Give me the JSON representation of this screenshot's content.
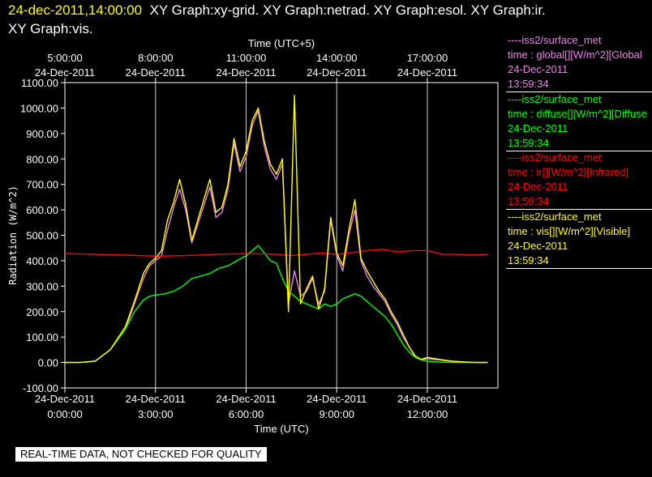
{
  "header": {
    "timestamp": "24-dec-2011,14:00:00",
    "graphs_line1": "XY Graph:xy-grid.  XY Graph:netrad.  XY Graph:esol.  XY Graph:ir.",
    "graphs_line2": "XY Graph:vis."
  },
  "legend": [
    {
      "source": "----iss2/surface_met",
      "var": "time : global[][W/m^2][Global",
      "date": "24-Dec-2011",
      "time": "13:59:34",
      "color": "#ee82ee"
    },
    {
      "source": "----iss2/surface_met",
      "var": "time : diffuse[][W/m^2][Diffuse",
      "date": "24-Dec-2011",
      "time": "13:59:34",
      "color": "#00ff00"
    },
    {
      "source": "----iss2/surface_met",
      "var": "time : ir[][W/m^2][Infrared]",
      "date": "24-Dec-2011",
      "time": "13:59:34",
      "color": "#ff0000"
    },
    {
      "source": "----iss2/surface_met",
      "var": "time : vis[][W/m^2][Visible]",
      "date": "24-Dec-2011",
      "time": "13:59:34",
      "color": "#ffff00"
    }
  ],
  "disclaimer": "REAL-TIME DATA, NOT CHECKED FOR QUALITY",
  "chart_data": {
    "type": "line",
    "xlabel": "Time (UTC)",
    "x2label": "Time (UTC+5)",
    "ylabel": "Radiation (W/m^2)",
    "xlim": [
      0,
      14.1
    ],
    "ylim": [
      -100,
      1100
    ],
    "yticks": [
      "-100.00",
      "0.00",
      "100.00",
      "200.00",
      "300.00",
      "400.00",
      "500.00",
      "600.00",
      "700.00",
      "800.00",
      "900.00",
      "1000.00",
      "1100.00"
    ],
    "xticks_bottom": [
      {
        "x": 0,
        "date": "24-Dec-2011",
        "time": "0:00:00"
      },
      {
        "x": 3,
        "date": "24-Dec-2011",
        "time": "3:00:00"
      },
      {
        "x": 6,
        "date": "24-Dec-2011",
        "time": "6:00:00"
      },
      {
        "x": 9,
        "date": "24-Dec-2011",
        "time": "9:00:00"
      },
      {
        "x": 12,
        "date": "24-Dec-2011",
        "time": "12:00:00"
      }
    ],
    "xticks_top": [
      {
        "x": 0,
        "time": "5:00:00",
        "date": "24-Dec-2011"
      },
      {
        "x": 3,
        "time": "8:00:00",
        "date": "24-Dec-2011"
      },
      {
        "x": 6,
        "time": "11:00:00",
        "date": "24-Dec-2011"
      },
      {
        "x": 9,
        "time": "14:00:00",
        "date": "24-Dec-2011"
      },
      {
        "x": 12,
        "time": "17:00:00",
        "date": "24-Dec-2011"
      }
    ],
    "grid": "vertical",
    "legend_position": "right",
    "series": [
      {
        "key": "global",
        "color": "#ee82ee",
        "x": [
          0,
          0.5,
          1,
          1.5,
          2,
          2.3,
          2.6,
          2.8,
          3,
          3.2,
          3.4,
          3.6,
          3.8,
          4,
          4.2,
          4.5,
          4.8,
          5,
          5.2,
          5.4,
          5.6,
          5.8,
          6,
          6.2,
          6.4,
          6.6,
          6.8,
          7,
          7.2,
          7.4,
          7.6,
          7.8,
          8,
          8.2,
          8.4,
          8.6,
          8.8,
          9,
          9.2,
          9.4,
          9.6,
          9.8,
          10,
          10.2,
          10.4,
          10.6,
          10.8,
          11,
          11.2,
          11.4,
          11.6,
          11.8,
          12,
          12.4,
          12.8,
          13.2,
          13.6,
          14
        ],
        "y": [
          0,
          0,
          5,
          50,
          130,
          230,
          330,
          380,
          400,
          420,
          520,
          610,
          680,
          600,
          470,
          580,
          690,
          570,
          590,
          680,
          860,
          750,
          810,
          930,
          990,
          850,
          760,
          720,
          780,
          230,
          360,
          260,
          280,
          330,
          230,
          280,
          560,
          420,
          360,
          500,
          600,
          400,
          340,
          300,
          270,
          240,
          190,
          150,
          100,
          60,
          20,
          10,
          15,
          10,
          5,
          2,
          0,
          0
        ]
      },
      {
        "key": "diffuse",
        "color": "#00ff00",
        "x": [
          0,
          0.5,
          1,
          1.5,
          2,
          2.3,
          2.6,
          2.8,
          3,
          3.3,
          3.6,
          3.9,
          4.2,
          4.5,
          4.8,
          5.1,
          5.4,
          5.7,
          6,
          6.2,
          6.4,
          6.6,
          6.8,
          7,
          7.2,
          7.4,
          7.6,
          7.8,
          8,
          8.2,
          8.4,
          8.6,
          8.8,
          9,
          9.2,
          9.4,
          9.6,
          9.8,
          10,
          10.2,
          10.4,
          10.6,
          10.8,
          11,
          11.2,
          11.4,
          11.6,
          11.8,
          12,
          12.4,
          12.8,
          13.2,
          13.6,
          14
        ],
        "y": [
          0,
          0,
          5,
          50,
          130,
          200,
          245,
          260,
          265,
          270,
          280,
          300,
          330,
          340,
          350,
          370,
          380,
          400,
          420,
          440,
          460,
          430,
          400,
          390,
          330,
          280,
          260,
          240,
          230,
          220,
          210,
          230,
          220,
          230,
          250,
          260,
          270,
          260,
          240,
          220,
          200,
          180,
          150,
          110,
          70,
          40,
          20,
          10,
          5,
          2,
          0,
          0,
          0,
          0
        ]
      },
      {
        "key": "ir",
        "color": "#ff0000",
        "x": [
          0,
          1,
          2,
          3,
          4,
          5,
          6,
          7,
          7.5,
          8,
          8.5,
          9,
          9.5,
          10,
          10.5,
          11,
          11.5,
          12,
          12.5,
          13,
          13.5,
          14
        ],
        "y": [
          428,
          425,
          422,
          418,
          420,
          425,
          428,
          425,
          420,
          425,
          430,
          425,
          432,
          440,
          445,
          435,
          440,
          440,
          425,
          425,
          422,
          425
        ]
      },
      {
        "key": "vis",
        "color": "#ffff00",
        "x": [
          0,
          0.5,
          1,
          1.5,
          2,
          2.3,
          2.6,
          2.8,
          3,
          3.2,
          3.4,
          3.6,
          3.8,
          4,
          4.2,
          4.5,
          4.8,
          5,
          5.2,
          5.4,
          5.6,
          5.8,
          6,
          6.2,
          6.4,
          6.6,
          6.8,
          7,
          7.2,
          7.4,
          7.6,
          7.8,
          8,
          8.2,
          8.4,
          8.6,
          8.8,
          9,
          9.2,
          9.4,
          9.6,
          9.8,
          10,
          10.2,
          10.4,
          10.6,
          10.8,
          11,
          11.2,
          11.4,
          11.6,
          11.8,
          12,
          12.4,
          12.8,
          13.2,
          13.6,
          14
        ],
        "y": [
          0,
          0,
          5,
          50,
          140,
          240,
          350,
          390,
          410,
          440,
          560,
          630,
          720,
          620,
          480,
          600,
          720,
          590,
          610,
          700,
          880,
          770,
          830,
          950,
          1000,
          870,
          780,
          740,
          800,
          200,
          1050,
          230,
          290,
          340,
          210,
          290,
          570,
          430,
          380,
          520,
          640,
          410,
          360,
          320,
          280,
          250,
          200,
          160,
          110,
          60,
          25,
          12,
          20,
          12,
          5,
          2,
          0,
          0
        ]
      }
    ]
  }
}
